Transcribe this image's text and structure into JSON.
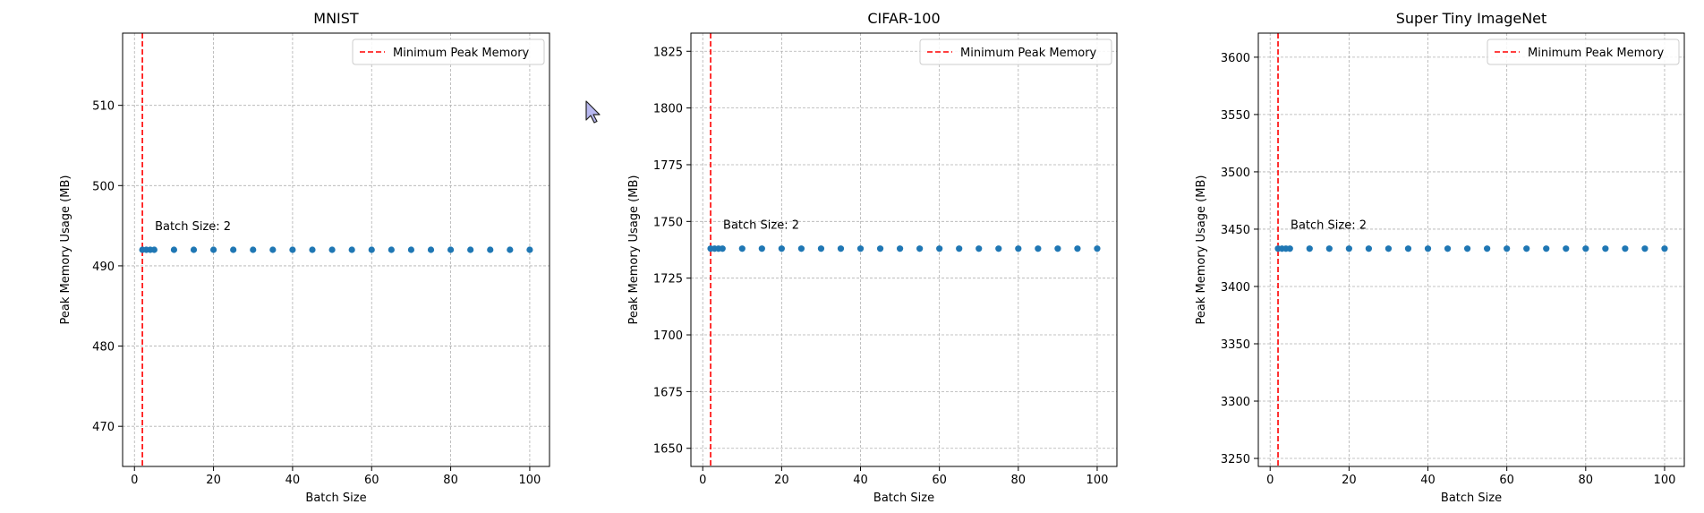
{
  "figure": {
    "background": "#ffffff"
  },
  "colors": {
    "series": "#1f77b4",
    "min_line": "#ff0000",
    "grid": "#b0b0b0",
    "axes": "#000000"
  },
  "legend_label": "Minimum Peak Memory",
  "cursor_icon": "pointer-arrow-icon",
  "chart_data": [
    {
      "type": "scatter",
      "title": "MNIST",
      "xlabel": "Batch Size",
      "ylabel": "Peak Memory Usage (MB)",
      "xlim": [
        -3,
        105
      ],
      "ylim": [
        465,
        519
      ],
      "xticks": [
        0,
        20,
        40,
        60,
        80,
        100
      ],
      "yticks": [
        470,
        480,
        490,
        500,
        510
      ],
      "grid": true,
      "legend": "upper right",
      "x": [
        2,
        3,
        4,
        5,
        10,
        15,
        20,
        25,
        30,
        35,
        40,
        45,
        50,
        55,
        60,
        65,
        70,
        75,
        80,
        85,
        90,
        95,
        100
      ],
      "y": [
        492,
        492,
        492,
        492,
        492,
        492,
        492,
        492,
        492,
        492,
        492,
        492,
        492,
        492,
        492,
        492,
        492,
        492,
        492,
        492,
        492,
        492,
        492
      ],
      "vline": {
        "x": 2,
        "label": "Minimum Peak Memory"
      },
      "annotation": {
        "text": "Batch Size: 2",
        "x": 2,
        "y": 492
      }
    },
    {
      "type": "scatter",
      "title": "CIFAR-100",
      "xlabel": "Batch Size",
      "ylabel": "Peak Memory Usage (MB)",
      "xlim": [
        -3,
        105
      ],
      "ylim": [
        1642,
        1833
      ],
      "xticks": [
        0,
        20,
        40,
        60,
        80,
        100
      ],
      "yticks": [
        1650,
        1675,
        1700,
        1725,
        1750,
        1775,
        1800,
        1825
      ],
      "grid": true,
      "legend": "upper right",
      "x": [
        2,
        3,
        4,
        5,
        10,
        15,
        20,
        25,
        30,
        35,
        40,
        45,
        50,
        55,
        60,
        65,
        70,
        75,
        80,
        85,
        90,
        95,
        100
      ],
      "y": [
        1738,
        1738,
        1738,
        1738,
        1738,
        1738,
        1738,
        1738,
        1738,
        1738,
        1738,
        1738,
        1738,
        1738,
        1738,
        1738,
        1738,
        1738,
        1738,
        1738,
        1738,
        1738,
        1738
      ],
      "vline": {
        "x": 2,
        "label": "Minimum Peak Memory"
      },
      "annotation": {
        "text": "Batch Size: 2",
        "x": 2,
        "y": 1738
      }
    },
    {
      "type": "scatter",
      "title": "Super Tiny ImageNet",
      "xlabel": "Batch Size",
      "ylabel": "Peak Memory Usage (MB)",
      "xlim": [
        -3,
        105
      ],
      "ylim": [
        3243,
        3621
      ],
      "xticks": [
        0,
        20,
        40,
        60,
        80,
        100
      ],
      "yticks": [
        3250,
        3300,
        3350,
        3400,
        3450,
        3500,
        3550,
        3600
      ],
      "grid": true,
      "legend": "upper right",
      "x": [
        2,
        3,
        4,
        5,
        10,
        15,
        20,
        25,
        30,
        35,
        40,
        45,
        50,
        55,
        60,
        65,
        70,
        75,
        80,
        85,
        90,
        95,
        100
      ],
      "y": [
        3433,
        3433,
        3433,
        3433,
        3433,
        3433,
        3433,
        3433,
        3433,
        3433,
        3433,
        3433,
        3433,
        3433,
        3433,
        3433,
        3433,
        3433,
        3433,
        3433,
        3433,
        3433,
        3433
      ],
      "vline": {
        "x": 2,
        "label": "Minimum Peak Memory"
      },
      "annotation": {
        "text": "Batch Size: 2",
        "x": 2,
        "y": 3433
      }
    }
  ]
}
